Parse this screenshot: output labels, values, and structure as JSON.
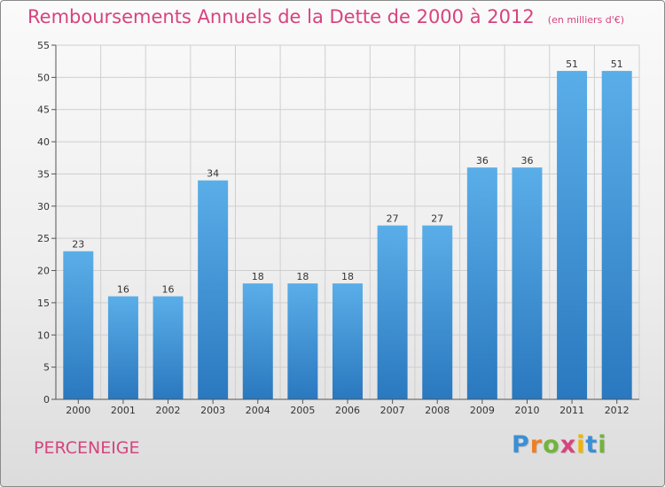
{
  "title": "Remboursements Annuels de la Dette de 2000 à 2012",
  "unit_note": "(en milliers d'€)",
  "commune": "PERCENEIGE",
  "logo": {
    "letters": [
      "P",
      "r",
      "o",
      "x",
      "i",
      "t",
      "i"
    ],
    "colors": [
      "#3b8fd6",
      "#f07e26",
      "#72b43c",
      "#d6447e",
      "#f0b400",
      "#3b8fd6",
      "#72b43c"
    ]
  },
  "colors": {
    "bar_top": "#5aaee8",
    "bar_bottom": "#2a78bf",
    "title": "#d6447e",
    "axis": "#555555",
    "grid": "#cfcfcf"
  },
  "chart_data": {
    "type": "bar",
    "categories": [
      "2000",
      "2001",
      "2002",
      "2003",
      "2004",
      "2005",
      "2006",
      "2007",
      "2008",
      "2009",
      "2010",
      "2011",
      "2012"
    ],
    "values": [
      23,
      16,
      16,
      34,
      18,
      18,
      18,
      27,
      27,
      36,
      36,
      51,
      51
    ],
    "ylim": [
      0,
      55
    ],
    "yticks": [
      0,
      5,
      10,
      15,
      20,
      25,
      30,
      35,
      40,
      45,
      50,
      55
    ],
    "grid": true,
    "data_labels": true
  }
}
